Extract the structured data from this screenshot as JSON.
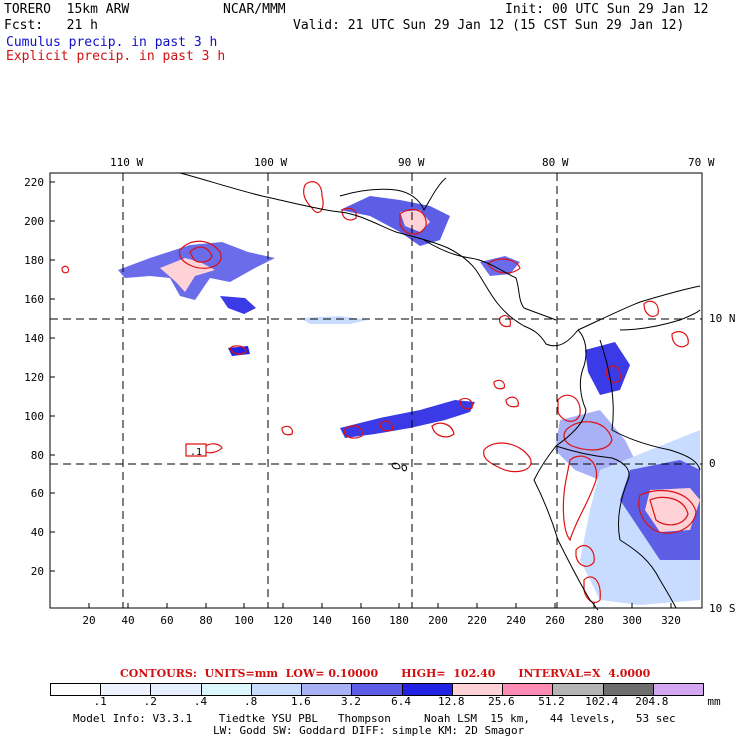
{
  "header": {
    "model": "TORERO  15km ARW",
    "center": "NCAR/MMM",
    "init": "Init: 00 UTC Sun 29 Jan 12",
    "forecast": "Fcst:   21 h",
    "valid": "Valid: 21 UTC Sun 29 Jan 12 (15 CST Sun 29 Jan 12)",
    "cumulus_label": "Cumulus precip. in past 3 h",
    "explicit_label": "Explicit precip. in past 3 h"
  },
  "map": {
    "lon_labels": [
      "110 W",
      "100 W",
      "90 W",
      "80 W",
      "70 W"
    ],
    "lat_labels": [
      "10 N",
      "0",
      "10 S"
    ],
    "y_ticks": [
      "220",
      "200",
      "180",
      "160",
      "140",
      "120",
      "100",
      "80",
      "60",
      "40",
      "20"
    ],
    "x_ticks": [
      "20",
      "40",
      "60",
      "80",
      "100",
      "120",
      "140",
      "160",
      "180",
      "200",
      "220",
      "240",
      "260",
      "280",
      "300",
      "320"
    ],
    "contour_label": ".1"
  },
  "contours": {
    "caption": "CONTOURS:  UNITS=mm  LOW= 0.10000      HIGH=  102.40      INTERVAL=X  4.0000"
  },
  "legend": {
    "colors": [
      "#ffffff",
      "#eef4ff",
      "#e6f0ff",
      "#ddf7ff",
      "#c8dcff",
      "#a8b0f6",
      "#5c5ee6",
      "#2222e4",
      "#ffd2d8",
      "#ff8cb4",
      "#b4b4b4",
      "#6e6e6e",
      "#d4a8f0"
    ],
    "breaks": [
      ".1",
      ".2",
      ".4",
      ".8",
      "1.6",
      "3.2",
      "6.4",
      "12.8",
      "25.6",
      "51.2",
      "102.4",
      "204.8"
    ],
    "units": "mm"
  },
  "footer": {
    "line1": "Model Info: V3.3.1    Tiedtke YSU PBL   Thompson     Noah LSM  15 km,   44 levels,   53 sec",
    "line2": "LW: Godd SW: Goddard DIFF: simple KM: 2D Smagor"
  }
}
